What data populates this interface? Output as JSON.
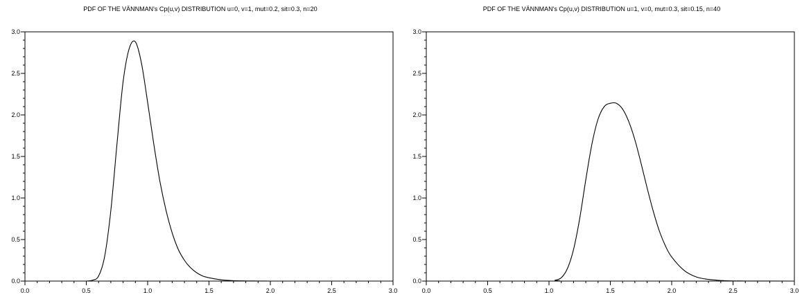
{
  "chart_data": [
    {
      "type": "line",
      "title": "PDF OF THE VÄNNMAN's Cp(u,v) DISTRIBUTION u=0, v=1, mut=0.2, sit=0.3, n=20",
      "xlabel": "",
      "ylabel": "",
      "xlim": [
        0,
        3
      ],
      "ylim": [
        0,
        3
      ],
      "x_ticks": [
        "0.0",
        "0.5",
        "1.0",
        "1.5",
        "2.0",
        "2.5",
        "3.0"
      ],
      "y_ticks": [
        "0.0",
        "0.5",
        "1.0",
        "1.5",
        "2.0",
        "2.5",
        "3.0"
      ],
      "grid": false,
      "legend": "none",
      "line_color": "#000000",
      "series": [
        {
          "x": [
            0.5,
            0.55,
            0.6,
            0.65,
            0.7,
            0.75,
            0.8,
            0.85,
            0.9,
            0.95,
            1.0,
            1.05,
            1.1,
            1.15,
            1.2,
            1.25,
            1.3,
            1.35,
            1.4,
            1.45,
            1.5,
            1.6,
            1.7,
            1.8,
            1.9,
            2.0,
            2.5,
            3.0
          ],
          "y": [
            0.0,
            0.01,
            0.06,
            0.3,
            0.85,
            1.65,
            2.4,
            2.8,
            2.88,
            2.62,
            2.15,
            1.65,
            1.2,
            0.85,
            0.58,
            0.38,
            0.25,
            0.16,
            0.1,
            0.06,
            0.04,
            0.015,
            0.005,
            0.002,
            0.001,
            0.0,
            0.0,
            0.0
          ]
        }
      ]
    },
    {
      "type": "line",
      "title": "PDF OF THE VÄNNMAN's Cp(u,v) DISTRIBUTION u=1, v=0, mut=0.3, sit=0.15, n=40",
      "xlabel": "",
      "ylabel": "",
      "xlim": [
        0,
        3
      ],
      "ylim": [
        0,
        3
      ],
      "x_ticks": [
        "0.0",
        "0.5",
        "1.0",
        "1.5",
        "2.0",
        "2.5",
        "3.0"
      ],
      "y_ticks": [
        "0.0",
        "0.5",
        "1.0",
        "1.5",
        "2.0",
        "2.5",
        "3.0"
      ],
      "grid": false,
      "legend": "none",
      "line_color": "#000000",
      "series": [
        {
          "x": [
            0.0,
            1.0,
            1.05,
            1.1,
            1.15,
            1.2,
            1.25,
            1.3,
            1.35,
            1.4,
            1.45,
            1.5,
            1.55,
            1.6,
            1.65,
            1.7,
            1.75,
            1.8,
            1.85,
            1.9,
            1.95,
            2.0,
            2.1,
            2.2,
            2.3,
            2.4,
            2.5,
            2.6,
            3.0
          ],
          "y": [
            0.0,
            0.0,
            0.01,
            0.04,
            0.15,
            0.38,
            0.75,
            1.22,
            1.65,
            1.95,
            2.1,
            2.14,
            2.14,
            2.07,
            1.92,
            1.7,
            1.42,
            1.12,
            0.84,
            0.6,
            0.42,
            0.29,
            0.13,
            0.05,
            0.02,
            0.007,
            0.002,
            0.001,
            0.0
          ]
        }
      ]
    }
  ]
}
